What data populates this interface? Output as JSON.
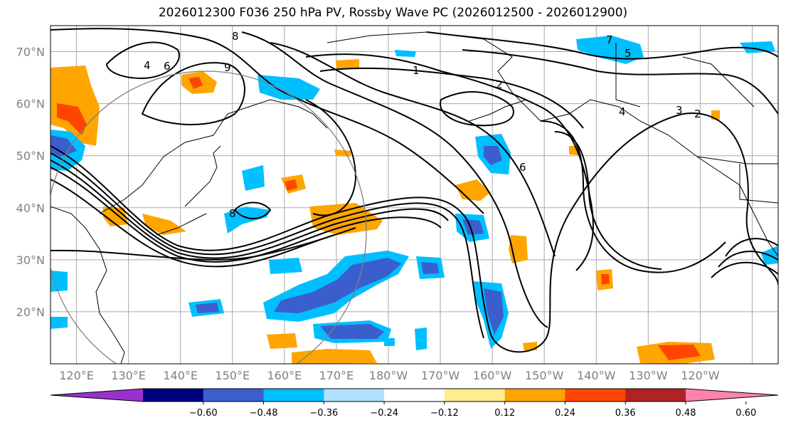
{
  "title": "2026012300 F036 250 hPa PV, Rossby Wave PC (2026012500 - 2026012900)",
  "map": {
    "lat_labels": [
      "70°N",
      "60°N",
      "50°N",
      "40°N",
      "30°N",
      "20°N"
    ],
    "lon_labels": [
      "120°E",
      "130°E",
      "140°E",
      "150°E",
      "160°E",
      "170°E",
      "180°W",
      "170°W",
      "160°W",
      "150°W",
      "140°W",
      "130°W",
      "120°W"
    ],
    "contour_labels": [
      "8",
      "9",
      "6",
      "4",
      "2",
      "1",
      "3",
      "5",
      "7",
      "6",
      "4",
      "2",
      "8"
    ]
  },
  "colorbar": {
    "colors": [
      "#9932cc",
      "#000080",
      "#3a5fcd",
      "#00bfff",
      "#b0e2ff",
      "#ffffff",
      "#ffec8b",
      "#ffa500",
      "#ff4500",
      "#b22222",
      "#ff82ab"
    ],
    "ticks": [
      "−0.60",
      "−0.48",
      "−0.36",
      "−0.24",
      "−0.12",
      "0.12",
      "0.24",
      "0.36",
      "0.48",
      "0.60"
    ]
  }
}
